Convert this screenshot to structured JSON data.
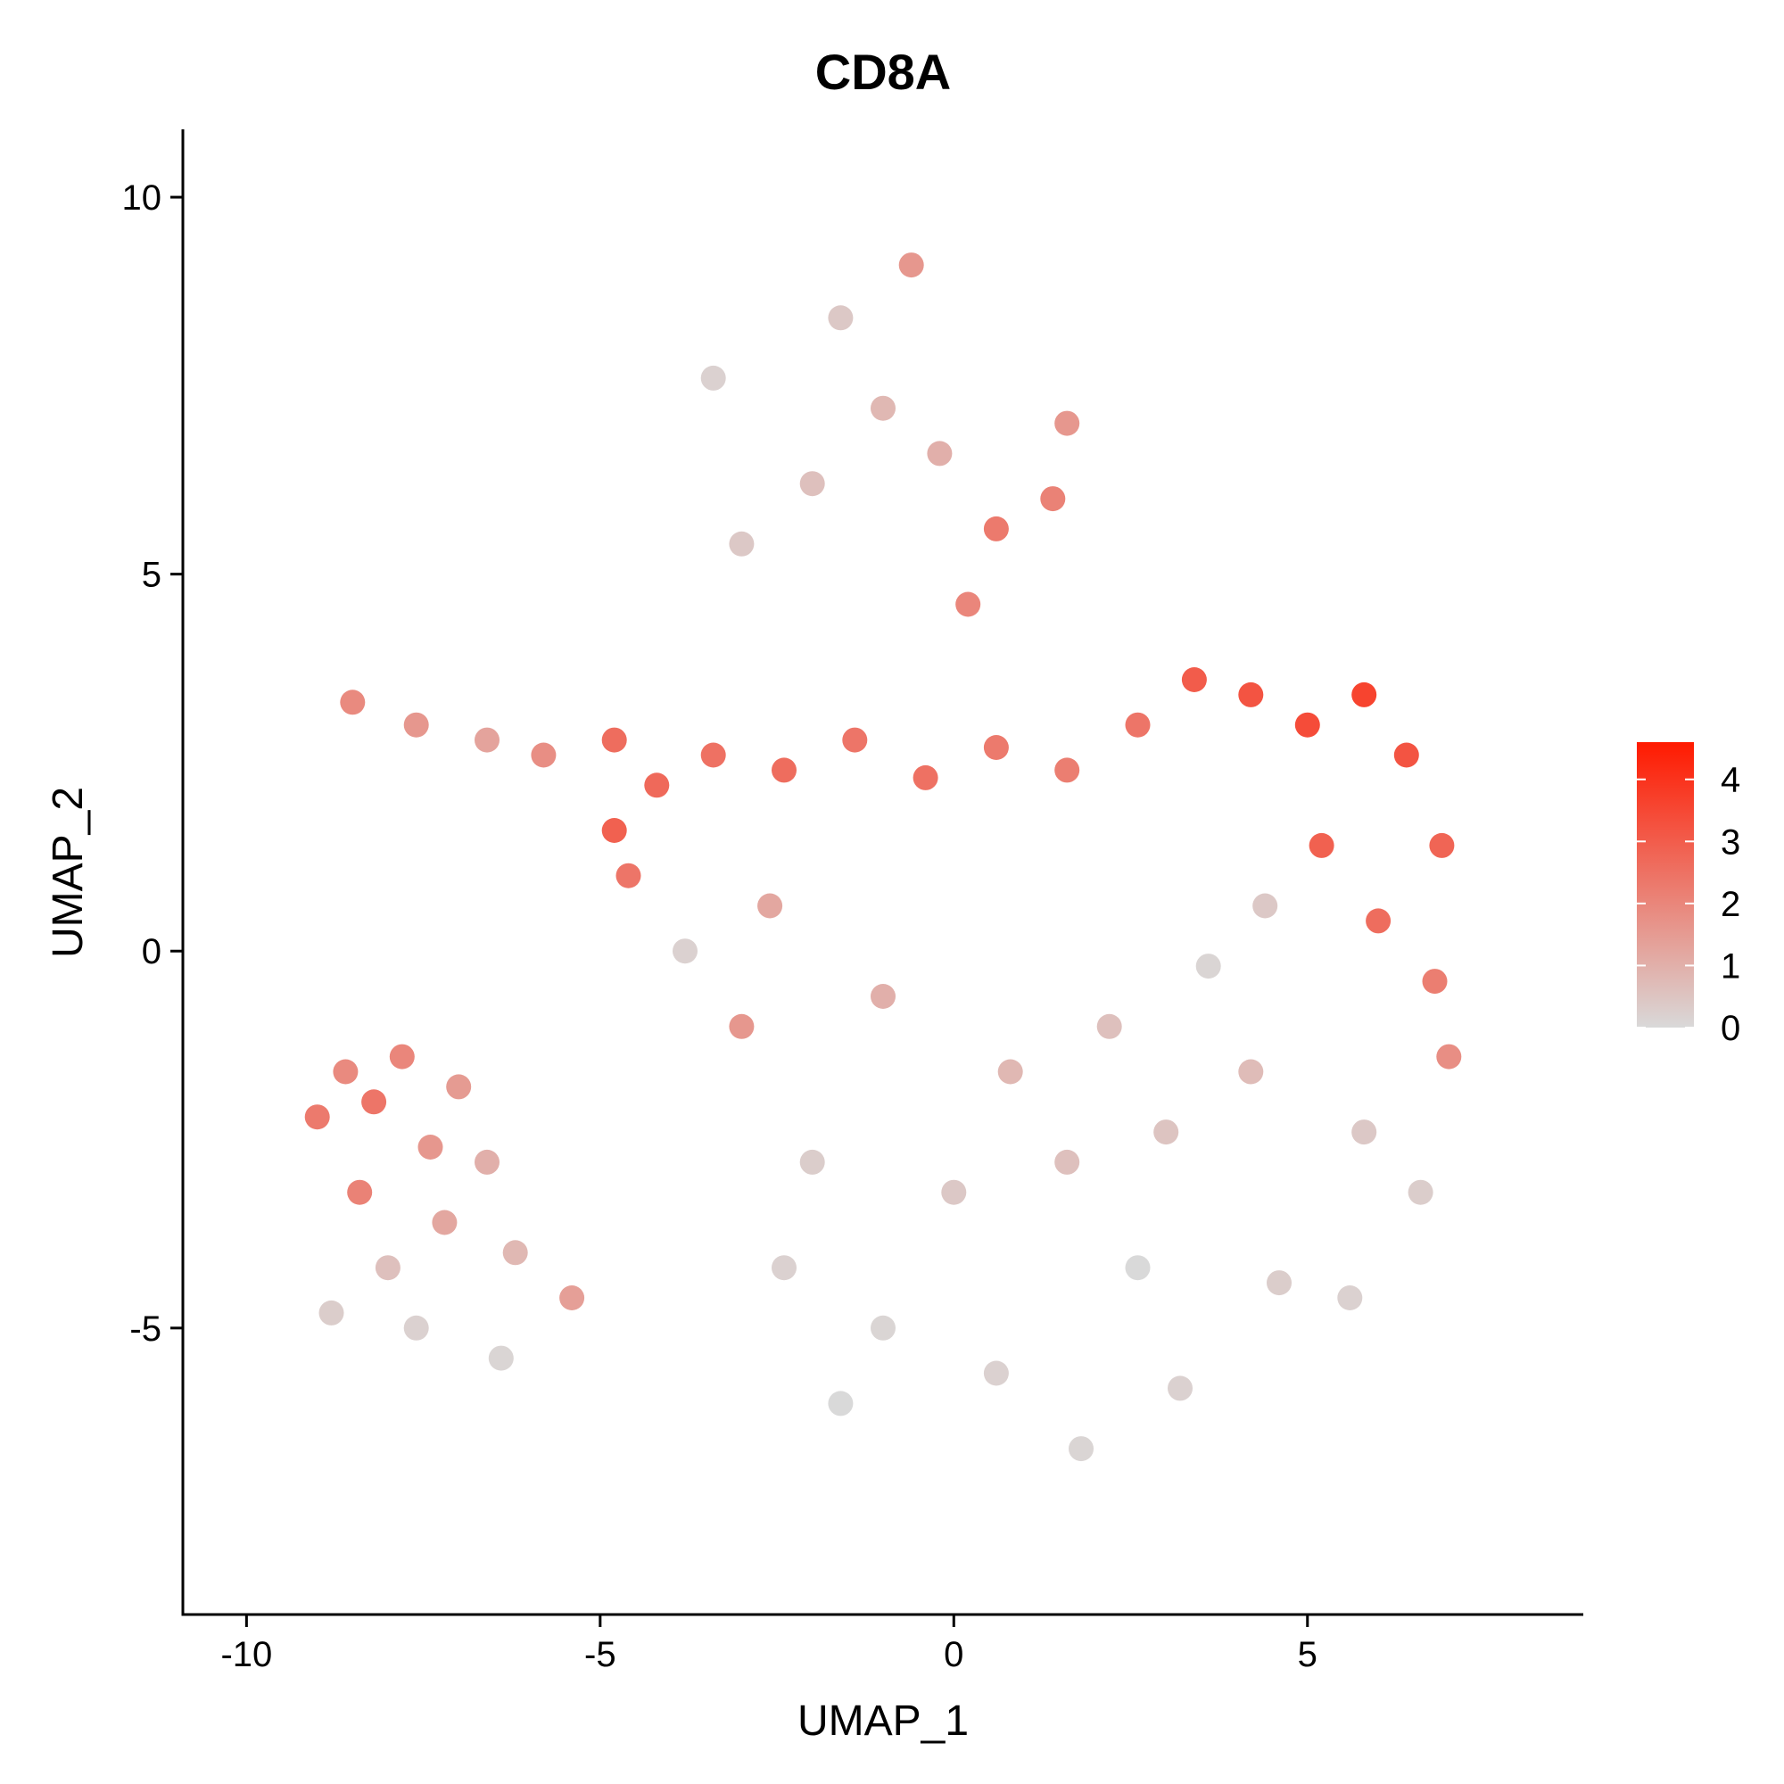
{
  "chart_data": {
    "type": "scatter",
    "title": "CD8A",
    "xlabel": "UMAP_1",
    "ylabel": "UMAP_2",
    "xlim": [
      -10.9,
      8.9
    ],
    "ylim": [
      -8.8,
      10.9
    ],
    "x_ticks": [
      -10,
      -5,
      0,
      5
    ],
    "x_tick_labels": [
      "-10",
      "-5",
      "0",
      "5"
    ],
    "y_ticks": [
      -5,
      0,
      5,
      10
    ],
    "y_tick_labels": [
      "-5",
      "0",
      "5",
      "10"
    ],
    "grid": false,
    "legend": {
      "placement": "right",
      "min": 0,
      "max": 4.6,
      "ticks": [
        0,
        1,
        2,
        3,
        4
      ],
      "tick_labels": [
        "0",
        "1",
        "2",
        "3",
        "4"
      ],
      "color_low": "#d9d9d9",
      "color_high": "#ff1a00"
    },
    "colors": {
      "low": "#d9d9d9",
      "high": "#ff1a00"
    },
    "series": [
      {
        "points": [
          [
            -9.0,
            -2.2,
            2.3
          ],
          [
            -8.6,
            -1.6,
            1.9
          ],
          [
            -8.2,
            -2.0,
            2.4
          ],
          [
            -7.8,
            -1.4,
            2.0
          ],
          [
            -7.4,
            -2.6,
            1.6
          ],
          [
            -8.4,
            -3.2,
            2.1
          ],
          [
            -7.0,
            -1.8,
            1.5
          ],
          [
            -6.6,
            -2.8,
            1.0
          ],
          [
            -7.2,
            -3.6,
            1.2
          ],
          [
            -8.0,
            -4.2,
            0.6
          ],
          [
            -6.2,
            -4.0,
            0.8
          ],
          [
            -5.4,
            -4.6,
            1.4
          ],
          [
            -7.6,
            -5.0,
            0.2
          ],
          [
            -6.4,
            -5.4,
            0.1
          ],
          [
            -8.8,
            -4.8,
            0.3
          ],
          [
            -8.5,
            3.3,
            1.9
          ],
          [
            -7.6,
            3.0,
            1.6
          ],
          [
            -6.6,
            2.8,
            1.3
          ],
          [
            -5.8,
            2.6,
            1.8
          ],
          [
            -4.8,
            2.8,
            2.6
          ],
          [
            -4.8,
            1.6,
            2.9
          ],
          [
            -4.2,
            2.2,
            2.7
          ],
          [
            -3.4,
            2.6,
            2.5
          ],
          [
            -2.4,
            2.4,
            2.6
          ],
          [
            -1.4,
            2.8,
            2.4
          ],
          [
            -0.4,
            2.3,
            2.5
          ],
          [
            0.6,
            2.7,
            2.3
          ],
          [
            1.6,
            2.4,
            2.2
          ],
          [
            2.6,
            3.0,
            2.4
          ],
          [
            3.4,
            3.6,
            3.0
          ],
          [
            4.2,
            3.4,
            3.2
          ],
          [
            5.0,
            3.0,
            3.4
          ],
          [
            5.8,
            3.4,
            3.6
          ],
          [
            6.4,
            2.6,
            3.2
          ],
          [
            6.9,
            1.4,
            2.8
          ],
          [
            5.2,
            1.4,
            2.9
          ],
          [
            6.0,
            0.4,
            2.6
          ],
          [
            6.8,
            -0.4,
            2.2
          ],
          [
            7.0,
            -1.4,
            1.8
          ],
          [
            0.6,
            5.6,
            2.3
          ],
          [
            1.4,
            6.0,
            2.1
          ],
          [
            1.6,
            7.0,
            1.6
          ],
          [
            0.2,
            4.6,
            2.0
          ],
          [
            -0.6,
            9.1,
            1.6
          ],
          [
            -1.6,
            8.4,
            0.4
          ],
          [
            -3.4,
            7.6,
            0.2
          ],
          [
            -3.0,
            5.4,
            0.4
          ],
          [
            -2.0,
            6.2,
            0.6
          ],
          [
            -1.0,
            7.2,
            0.8
          ],
          [
            -0.2,
            6.6,
            1.0
          ],
          [
            -2.6,
            0.6,
            1.2
          ],
          [
            -3.0,
            -1.0,
            1.6
          ],
          [
            -1.0,
            -0.6,
            1.0
          ],
          [
            0.8,
            -1.6,
            0.8
          ],
          [
            2.2,
            -1.0,
            0.6
          ],
          [
            -2.0,
            -2.8,
            0.3
          ],
          [
            0.0,
            -3.2,
            0.4
          ],
          [
            1.6,
            -2.8,
            0.6
          ],
          [
            3.0,
            -2.4,
            0.5
          ],
          [
            4.2,
            -1.6,
            0.7
          ],
          [
            5.8,
            -2.4,
            0.4
          ],
          [
            6.6,
            -3.2,
            0.3
          ],
          [
            -2.4,
            -4.2,
            0.2
          ],
          [
            -1.0,
            -5.0,
            0.1
          ],
          [
            0.6,
            -5.6,
            0.2
          ],
          [
            1.8,
            -6.6,
            0.1
          ],
          [
            3.2,
            -5.8,
            0.2
          ],
          [
            4.6,
            -4.4,
            0.3
          ],
          [
            5.6,
            -4.6,
            0.2
          ],
          [
            -1.6,
            -6.0,
            0.0
          ],
          [
            2.6,
            -4.2,
            0.0
          ],
          [
            3.6,
            -0.2,
            0.1
          ],
          [
            4.4,
            0.6,
            0.4
          ],
          [
            -3.8,
            0.0,
            0.2
          ],
          [
            -4.6,
            1.0,
            2.4
          ]
        ]
      }
    ]
  }
}
